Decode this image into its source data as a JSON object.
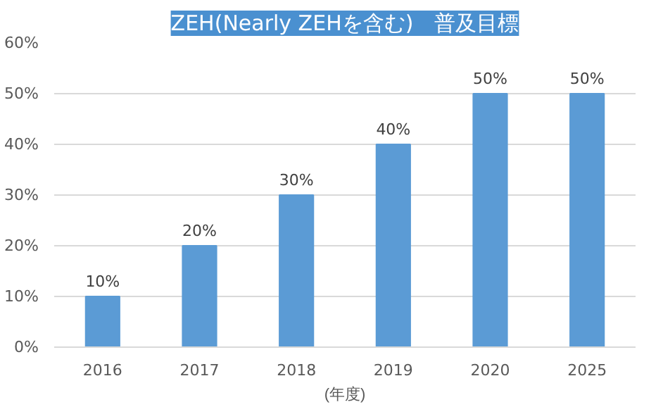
{
  "chart_data": {
    "type": "bar",
    "title": "ZEH(Nearly ZEHを含む)　普及目標",
    "xlabel": "(年度)",
    "categories": [
      "2016",
      "2017",
      "2018",
      "2019",
      "2020",
      "2025"
    ],
    "values": [
      10,
      20,
      30,
      40,
      50,
      50
    ],
    "value_labels": [
      "10%",
      "20%",
      "30%",
      "40%",
      "50%",
      "50%"
    ],
    "color": "#5b9bd5",
    "ylim": [
      0,
      60
    ],
    "yticks": [
      {
        "value": 0,
        "label": "0%"
      },
      {
        "value": 10,
        "label": "10%"
      },
      {
        "value": 20,
        "label": "20%"
      },
      {
        "value": 30,
        "label": "30%"
      },
      {
        "value": 40,
        "label": "40%"
      },
      {
        "value": 50,
        "label": "50%"
      },
      {
        "value": 60,
        "label": "60%"
      }
    ],
    "grid": "y"
  }
}
